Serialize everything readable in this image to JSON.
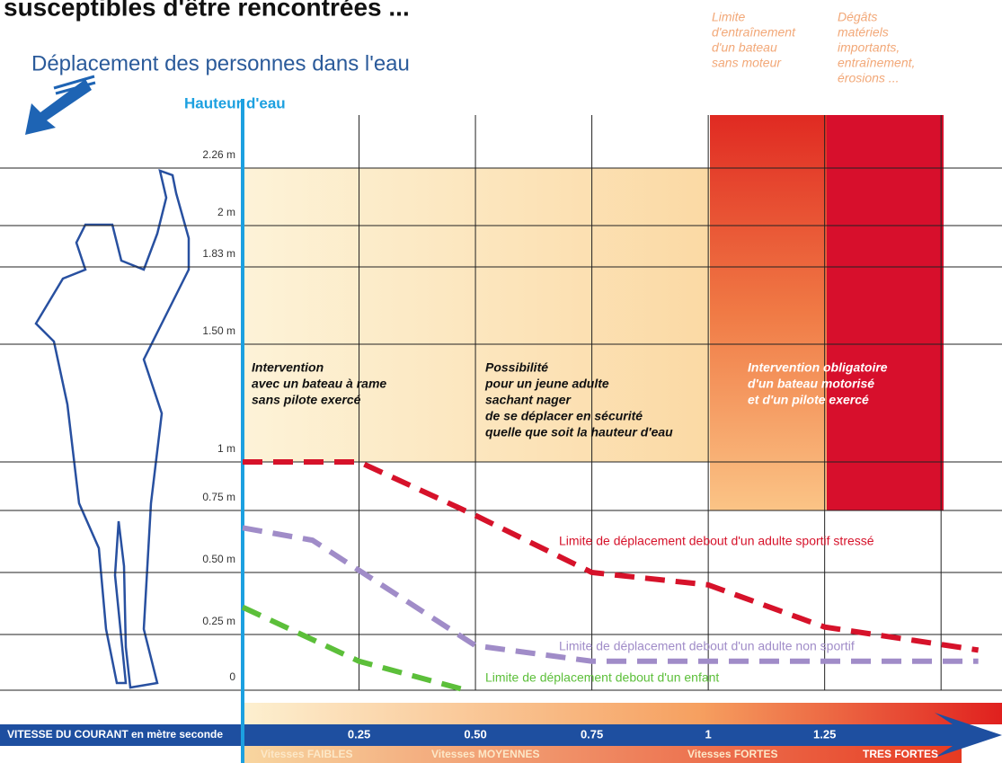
{
  "title": "susceptibles d'être rencontrées ...",
  "subtitle": "Déplacement des personnes dans l'eau",
  "chart_data": {
    "type": "line",
    "y_label": "Hauteur d'eau",
    "x_label": "VITESSE DU COURANT en mètre seconde",
    "xlim": [
      0,
      1.6
    ],
    "xticks": [
      0.25,
      {
        "value": 0.5,
        "label": "0.50"
      },
      {
        "value": 0.75,
        "label": "0.75"
      },
      1,
      1.25,
      {
        "value": 1.5,
        "label": null
      }
    ],
    "ylim": [
      0,
      2.26
    ],
    "yticks": [
      0,
      {
        "value": 0.25,
        "label": "0.25 m"
      },
      {
        "value": 0.5,
        "label": "0.50 m"
      },
      {
        "value": 0.75,
        "label": "0.75 m"
      },
      {
        "value": 1,
        "label": "1 m"
      },
      {
        "value": 1.5,
        "label": "1.50 m"
      },
      {
        "value": 1.83,
        "label": "1.83 m"
      },
      {
        "value": 2,
        "label": "2 m"
      },
      {
        "value": 2.26,
        "label": "2.26 m"
      }
    ],
    "grid": true,
    "series": [
      {
        "name": "Limite de déplacement debout d'un adulte sportif stressé",
        "color": "#d6122a",
        "x": [
          0,
          0.25,
          0.5,
          0.75,
          1,
          1.25,
          1.58
        ],
        "values": [
          1,
          1,
          0.73,
          0.5,
          0.45,
          0.28,
          0.18
        ]
      },
      {
        "name": "Limite de déplacement debout d'un adulte non sportif",
        "color": "#a08cc8",
        "x": [
          0,
          0.15,
          0.5,
          0.75,
          1.58
        ],
        "values": [
          0.68,
          0.63,
          0.2,
          0.13,
          0.13
        ]
      },
      {
        "name": "Limite de déplacement debout d'un enfant",
        "color": "#5cbf3a",
        "x": [
          0,
          0.25,
          0.48
        ],
        "values": [
          0.36,
          0.13,
          0
        ]
      }
    ],
    "speed_classes": [
      "Vitesses FAIBLES",
      "Vitesses MOYENNES",
      "Vitesses FORTES",
      "TRES FORTES"
    ],
    "annotations": [
      {
        "lines": [
          "Intervention",
          "avec un bateau à rame",
          "sans pilote exercé"
        ]
      },
      {
        "lines": [
          "Possibilité",
          "pour un jeune adulte",
          "sachant nager",
          "de se déplacer en sécurité",
          "quelle que soit la hauteur d'eau"
        ]
      },
      {
        "lines": [
          "Intervention obligatoire",
          "d'un bateau motorisé",
          "et d'un pilote exercé"
        ]
      }
    ],
    "notes": [
      {
        "lines": [
          "Limite",
          "d'entraînement",
          "d'un bateau",
          "sans moteur"
        ]
      },
      {
        "lines": [
          "Dégâts",
          "matériels",
          "importants,",
          "entraînement,",
          "érosions ..."
        ]
      }
    ]
  }
}
